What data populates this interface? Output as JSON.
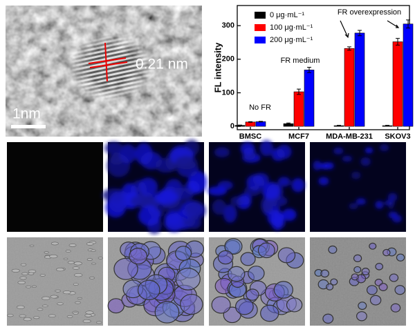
{
  "tem_image": {
    "lattice_label": "0.21 nm",
    "scale_bar_label": "1nm"
  },
  "chart_data": {
    "type": "bar",
    "ylabel": "FL intensity",
    "categories": [
      "BMSC",
      "MCF7",
      "MDA-MB-231",
      "SKOV3"
    ],
    "series": [
      {
        "name": "0 μg·mL⁻¹",
        "color": "#000000",
        "values": [
          3,
          8,
          2,
          2
        ],
        "errors": [
          1,
          2,
          1,
          1
        ]
      },
      {
        "name": "100 μg·mL⁻¹",
        "color": "#ff0000",
        "values": [
          13,
          103,
          232,
          252
        ],
        "errors": [
          1,
          8,
          5,
          10
        ]
      },
      {
        "name": "200 μg·mL⁻¹",
        "color": "#0000ff",
        "values": [
          14,
          168,
          278,
          305
        ],
        "errors": [
          1,
          8,
          8,
          12
        ]
      }
    ],
    "annotations": [
      "No FR",
      "FR medium",
      "FR overexpression"
    ],
    "ylim": [
      -10,
      360
    ],
    "yticks": [
      0,
      100,
      200,
      300
    ],
    "legend": "upper left"
  }
}
